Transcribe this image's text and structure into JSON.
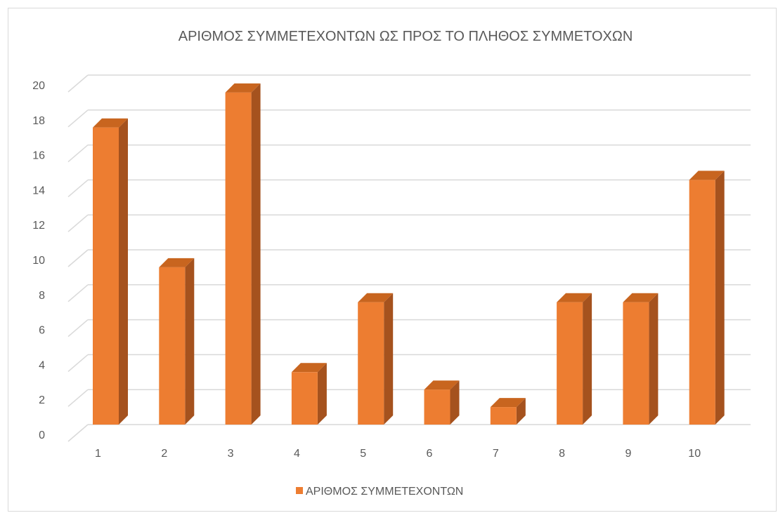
{
  "chart_data": {
    "type": "bar",
    "title": "ΑΡΙΘΜΟΣ ΣΥΜΜΕΤΕΧΟΝΤΩΝ ΩΣ ΠΡΟΣ ΤΟ ΠΛΗΘΟΣ ΣΥΜΜΕΤΟΧΩΝ",
    "categories": [
      "1",
      "2",
      "3",
      "4",
      "5",
      "6",
      "7",
      "8",
      "9",
      "10"
    ],
    "series": [
      {
        "name": "ΑΡΙΘΜΟΣ ΣΥΜΜΕΤΕΧΟΝΤΩΝ",
        "values": [
          17,
          9,
          19,
          3,
          7,
          2,
          1,
          7,
          7,
          14
        ]
      }
    ],
    "ylim": [
      0,
      20
    ],
    "yticks": [
      "0",
      "2",
      "4",
      "6",
      "8",
      "10",
      "12",
      "14",
      "16",
      "18",
      "20"
    ],
    "grid": true,
    "three_d": true,
    "legend_position": "bottom",
    "colors": {
      "front": "#ED7D31",
      "side": "#A5521E",
      "top": "#C8651F",
      "grid": "#d9d9d9",
      "text": "#595959"
    }
  }
}
